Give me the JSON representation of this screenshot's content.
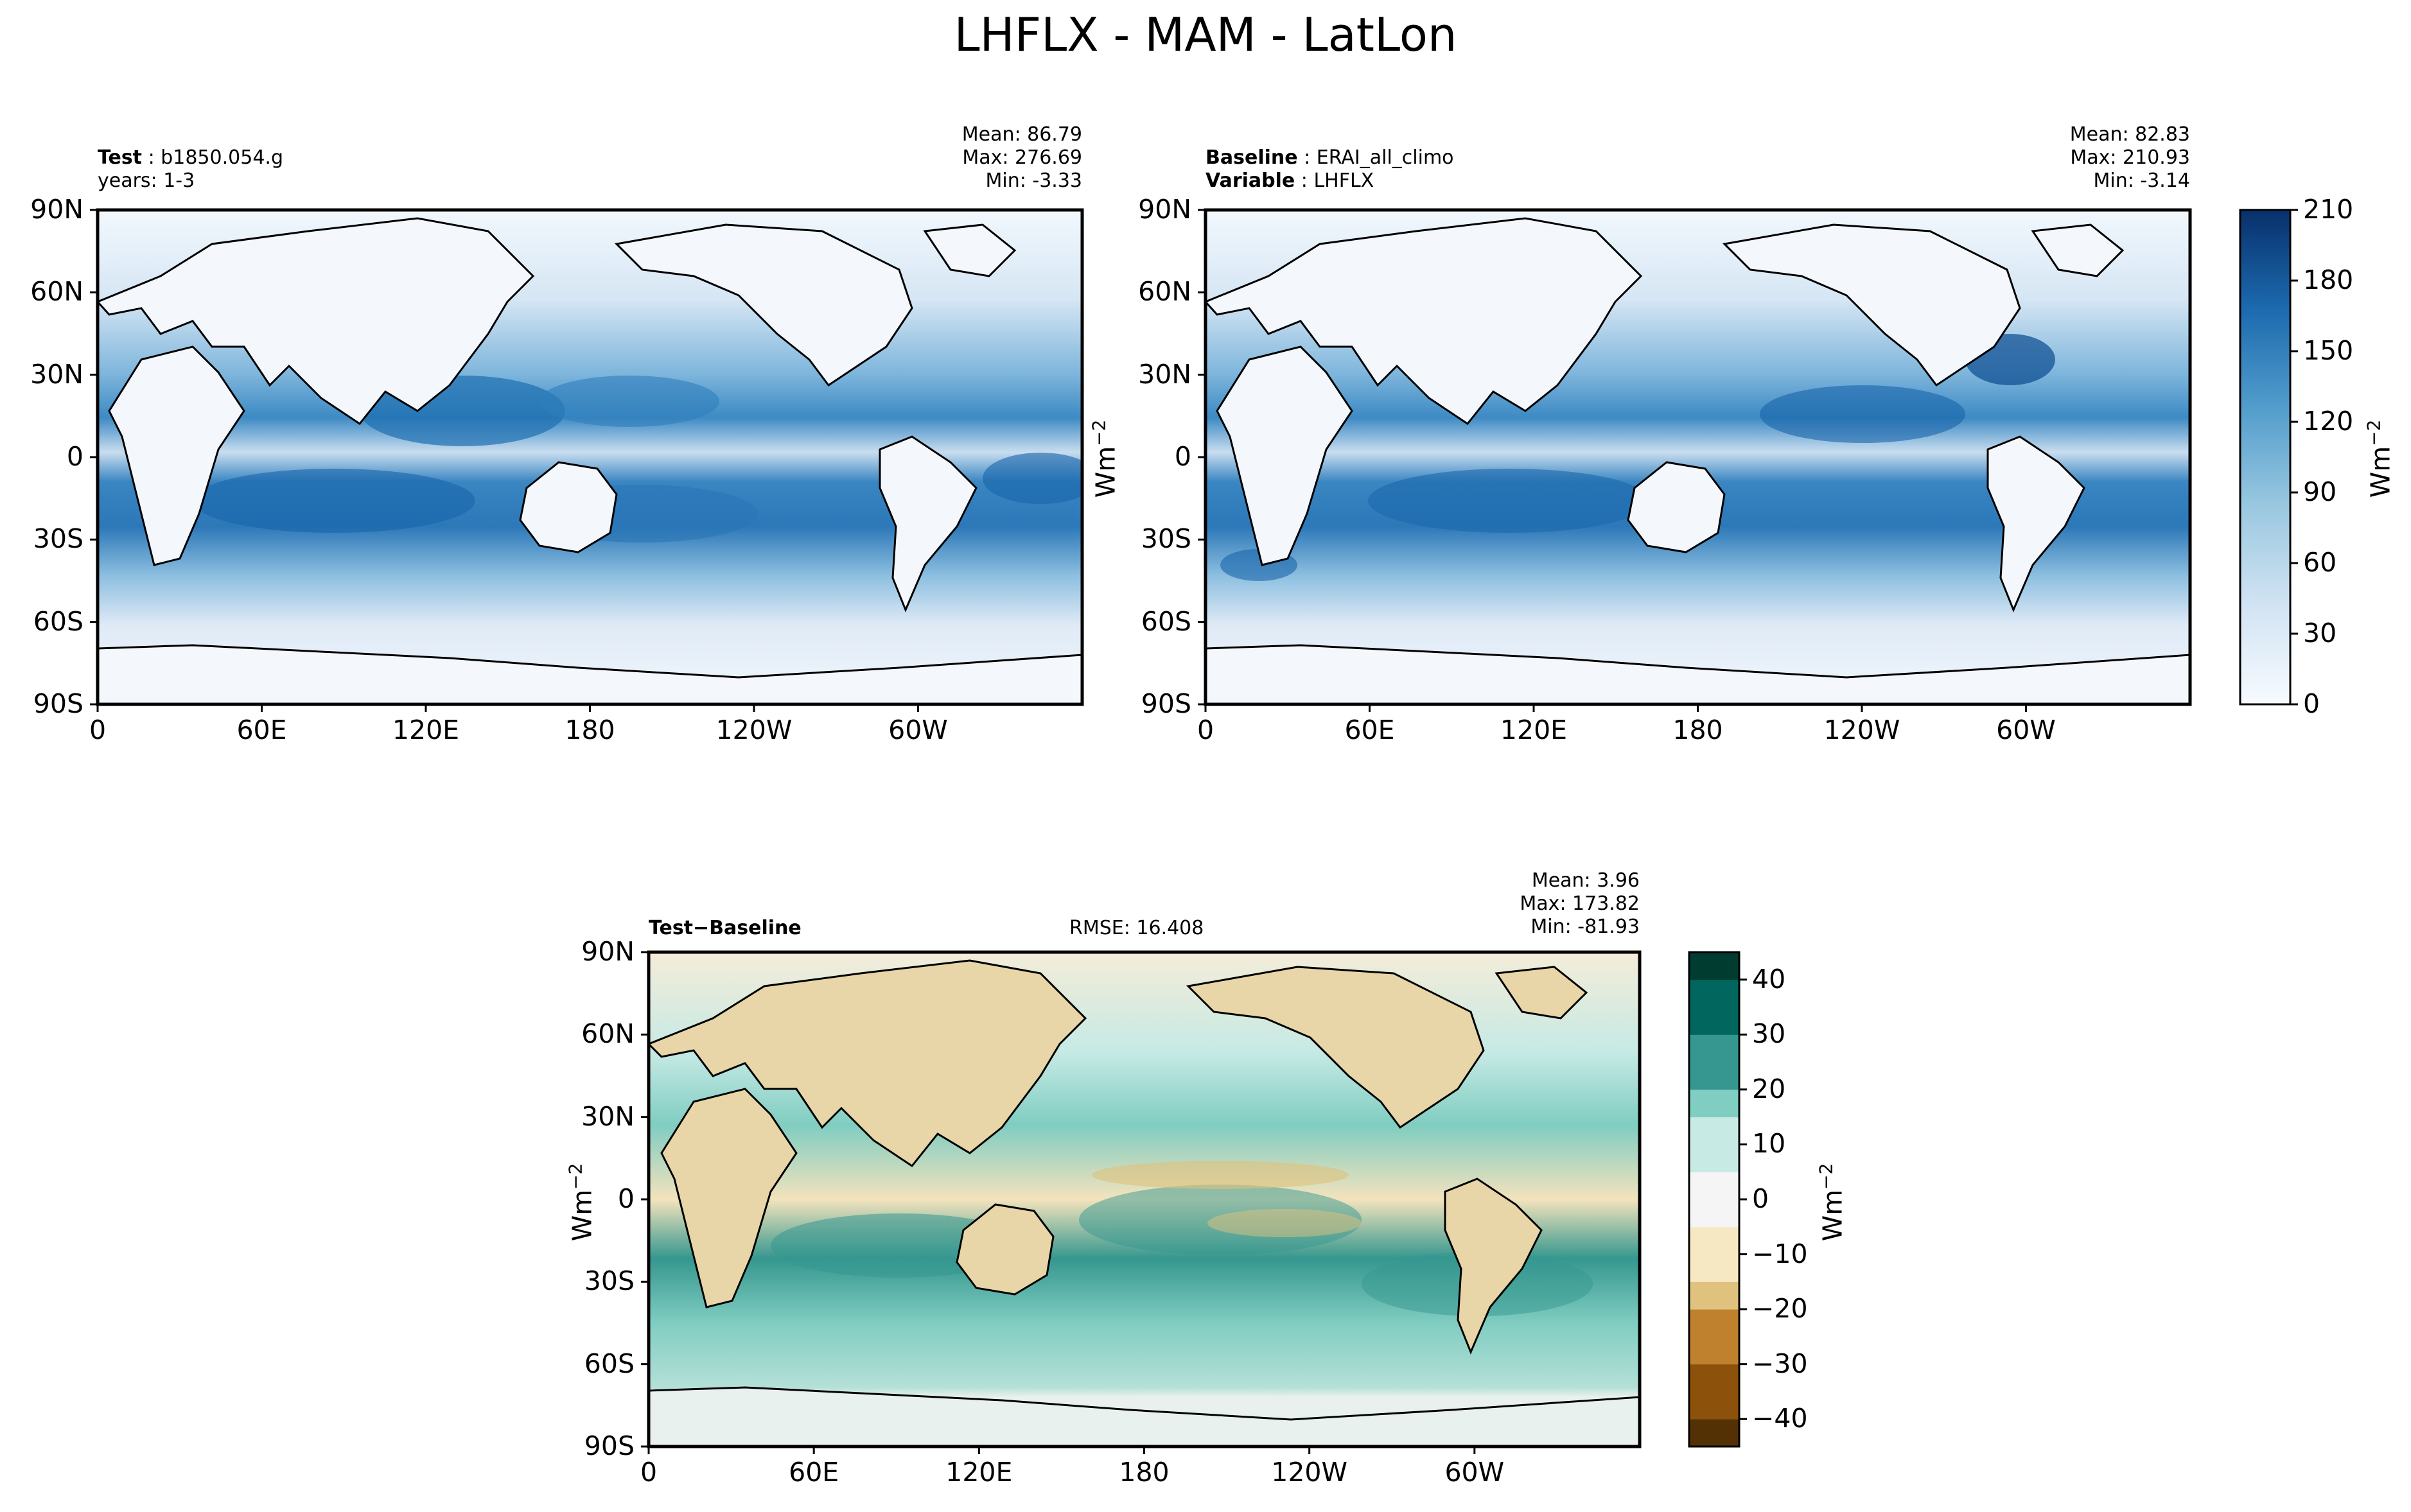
{
  "figure_title": "LHFLX - MAM - LatLon",
  "chart_data": [
    {
      "type": "heatmap",
      "panel": "test",
      "labels": [
        "Test",
        "b1850.054.g",
        "years: 1-3"
      ],
      "stats": {
        "mean": "Mean: 86.79",
        "max": "Max: 276.69",
        "min": "Min: -3.33"
      },
      "x_ticks": [
        "0",
        "60E",
        "120E",
        "180",
        "120W",
        "60W"
      ],
      "y_ticks": [
        "90N",
        "60N",
        "30N",
        "0",
        "30S",
        "60S",
        "90S"
      ],
      "xlim": [
        0,
        360
      ],
      "ylim": [
        -90,
        90
      ],
      "colormap": "Blues"
    },
    {
      "type": "heatmap",
      "panel": "baseline",
      "labels": [
        "Baseline",
        "ERAI_all_climo",
        "Variable",
        "LHFLX"
      ],
      "stats": {
        "mean": "Mean: 82.83",
        "max": "Max: 210.93",
        "min": "Min: -3.14"
      },
      "x_ticks": [
        "0",
        "60E",
        "120E",
        "180",
        "120W",
        "60W"
      ],
      "y_ticks": [
        "90N",
        "60N",
        "30N",
        "0",
        "30S",
        "60S",
        "90S"
      ],
      "xlim": [
        0,
        360
      ],
      "ylim": [
        -90,
        90
      ],
      "colormap": "Blues",
      "colorbar": {
        "ticks": [
          "210",
          "180",
          "150",
          "120",
          "90",
          "60",
          "30",
          "0"
        ],
        "range": [
          0,
          210
        ],
        "label_main": "Wm",
        "label_sup": "−2"
      }
    },
    {
      "type": "heatmap",
      "panel": "difference",
      "labels": [
        "Test",
        "−",
        "Baseline"
      ],
      "rmse": "RMSE: 16.408",
      "stats": {
        "mean": "Mean:  3.96",
        "max": "Max: 173.82",
        "min": "Min: -81.93"
      },
      "x_ticks": [
        "0",
        "60E",
        "120E",
        "180",
        "120W",
        "60W"
      ],
      "y_ticks": [
        "90N",
        "60N",
        "30N",
        "0",
        "30S",
        "60S",
        "90S"
      ],
      "xlim": [
        0,
        360
      ],
      "ylim": [
        -90,
        90
      ],
      "colormap": "BrBG",
      "colorbar": {
        "ticks": [
          "40",
          "30",
          "20",
          "10",
          "0",
          "−10",
          "−20",
          "−30",
          "−40"
        ],
        "range": [
          -45,
          45
        ],
        "label_main": "Wm",
        "label_sup": "−2"
      }
    }
  ],
  "shared_ylabel": {
    "main": "Wm",
    "sup": "−2"
  },
  "colors": {
    "blues": [
      "#f7fbff",
      "#e3eef9",
      "#cfe1f2",
      "#b5d4e9",
      "#93c3df",
      "#6daed5",
      "#4b97c9",
      "#2f7ebc",
      "#1864aa",
      "#0a4a90",
      "#08306b"
    ],
    "brbg": [
      "#543005",
      "#8c510a",
      "#bf812d",
      "#dfc27d",
      "#f6e8c3",
      "#f5f5f5",
      "#c7eae5",
      "#80cdc1",
      "#35978f",
      "#01665e",
      "#003c30"
    ]
  }
}
